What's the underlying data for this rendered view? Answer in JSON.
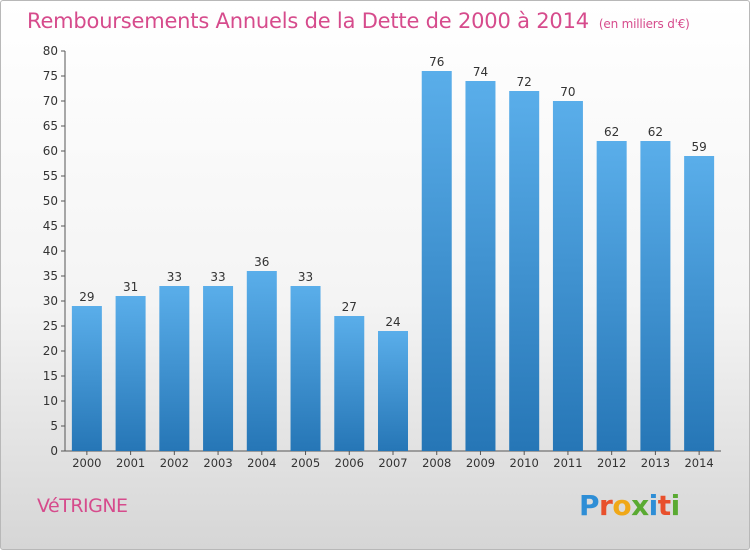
{
  "header": {
    "title": "Remboursements Annuels de la Dette de 2000 à 2014",
    "unit": "(en milliers d'€)"
  },
  "footer": {
    "commune": "VéTRIGNE",
    "logo": "Proxiti"
  },
  "colors": {
    "accent": "#d64b8c",
    "bar_top": "#5aaeea",
    "bar_bottom": "#2676b6",
    "logo": [
      "#2e8ed6",
      "#e8502c",
      "#f0a818",
      "#5aaa32",
      "#2e8ed6",
      "#e8502c",
      "#5aaa32"
    ]
  },
  "chart_data": {
    "type": "bar",
    "title": "Remboursements Annuels de la Dette de 2000 à 2014",
    "subtitle": "(en milliers d'€)",
    "xlabel": "",
    "ylabel": "",
    "categories": [
      "2000",
      "2001",
      "2002",
      "2003",
      "2004",
      "2005",
      "2006",
      "2007",
      "2008",
      "2009",
      "2010",
      "2011",
      "2012",
      "2013",
      "2014"
    ],
    "values": [
      29,
      31,
      33,
      33,
      36,
      33,
      27,
      24,
      76,
      74,
      72,
      70,
      62,
      62,
      59
    ],
    "ylim": [
      0,
      80
    ],
    "ytick_step": 5,
    "grid": false,
    "data_labels": true
  }
}
